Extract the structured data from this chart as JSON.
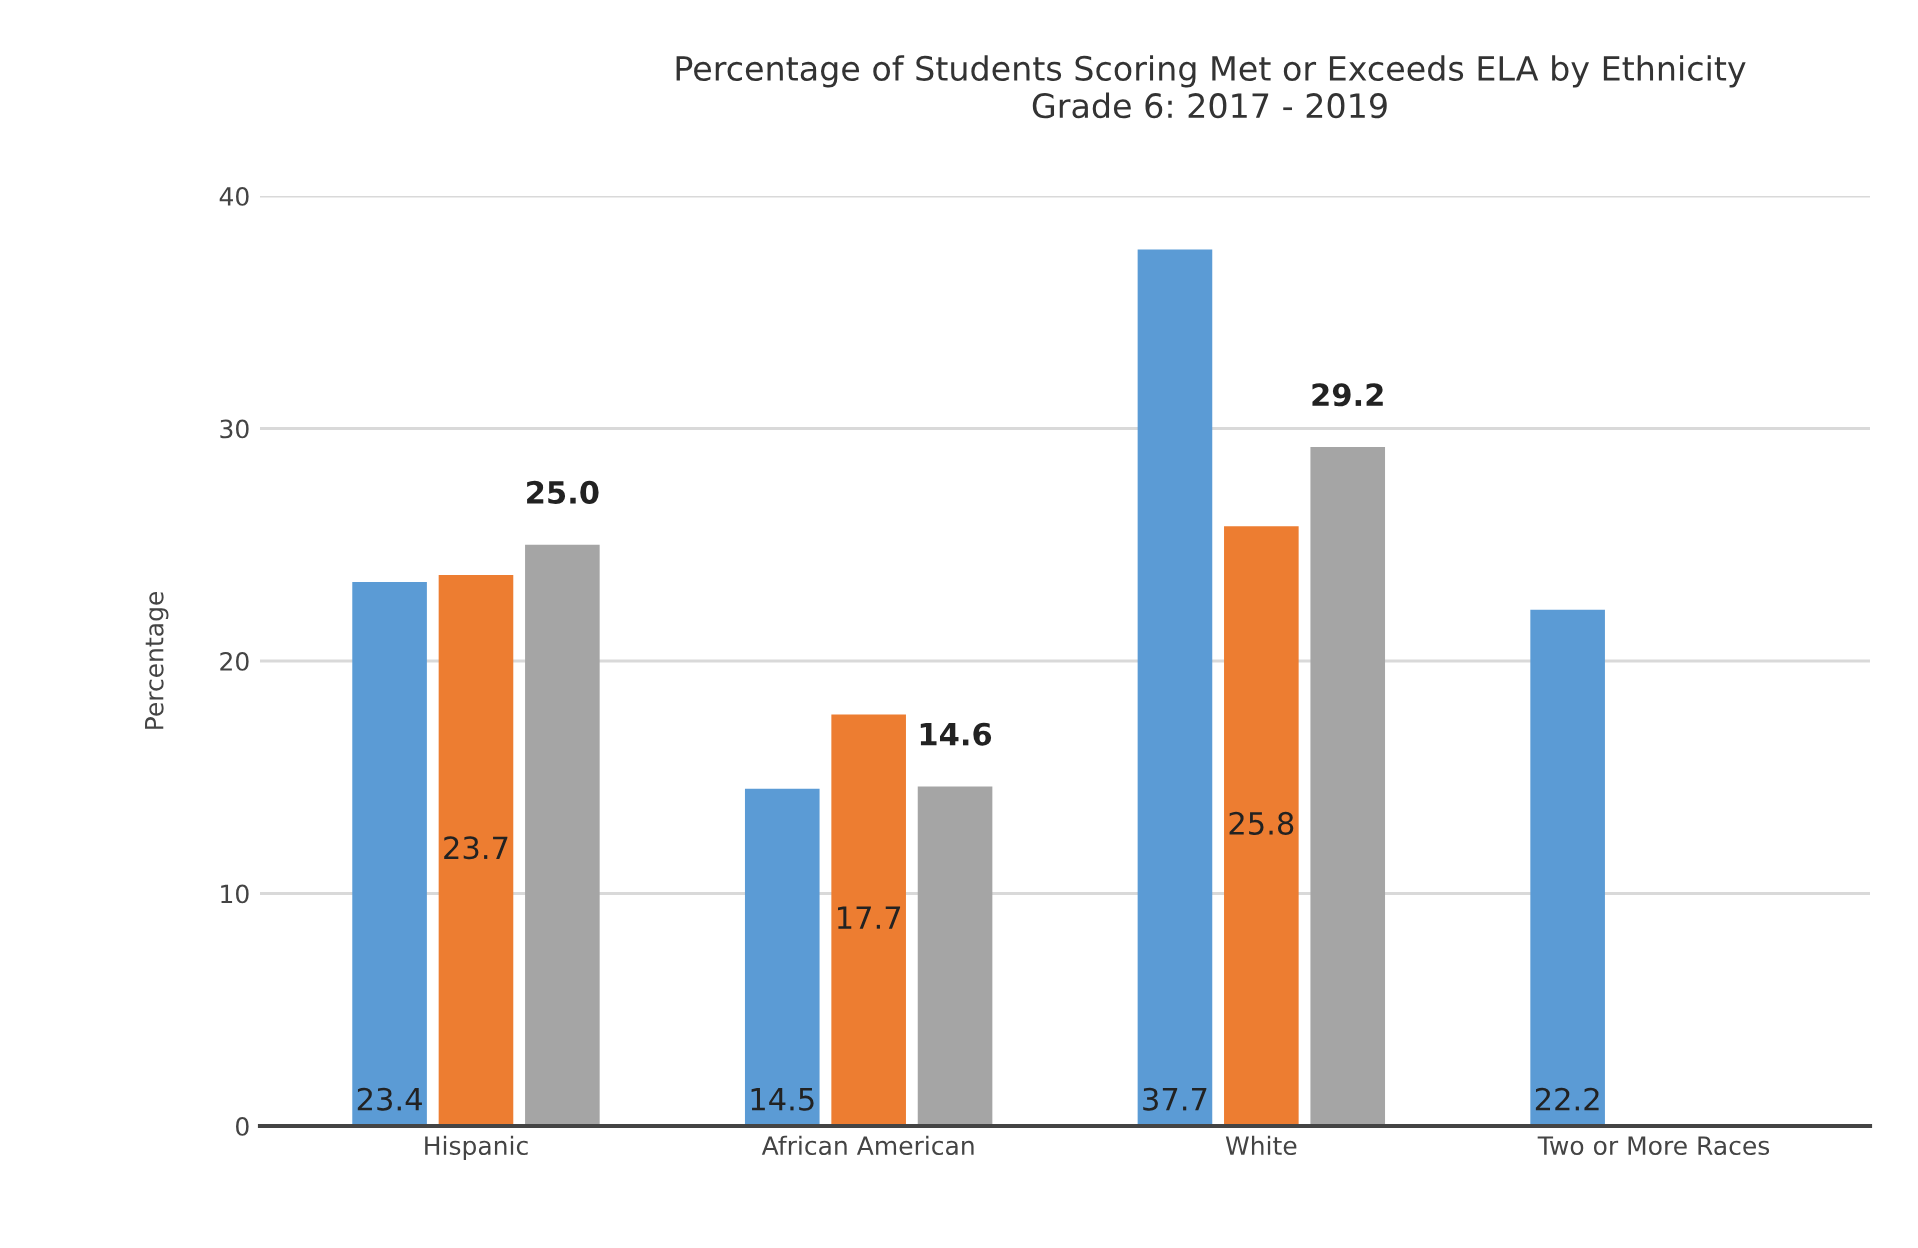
{
  "chart_data": {
    "type": "bar",
    "title": "Percentage of Students Scoring Met or Exceeds ELA by Ethnicity\nGrade 6: 2017 - 2019",
    "ylabel": "Percentage",
    "categories": [
      "Hispanic",
      "African American",
      "White",
      "Two or More Races"
    ],
    "series": [
      {
        "color": "#5b9bd5",
        "values": [
          23.4,
          14.5,
          37.7,
          22.2
        ],
        "value_labels": [
          "23.4",
          "14.5",
          "37.7",
          "22.2"
        ]
      },
      {
        "color": "#ed7d31",
        "values": [
          23.7,
          17.7,
          25.8,
          null
        ],
        "value_labels": [
          "23.7",
          "17.7",
          "25.8",
          null
        ]
      },
      {
        "color": "#a5a5a5",
        "values": [
          25.0,
          14.6,
          29.2,
          null
        ],
        "value_labels": [
          "25.0",
          "14.6",
          "29.2",
          null
        ]
      }
    ],
    "ylim": [
      0,
      40
    ],
    "yticks": [
      0,
      10,
      20,
      30,
      40
    ],
    "grid": "y",
    "legend": false
  }
}
